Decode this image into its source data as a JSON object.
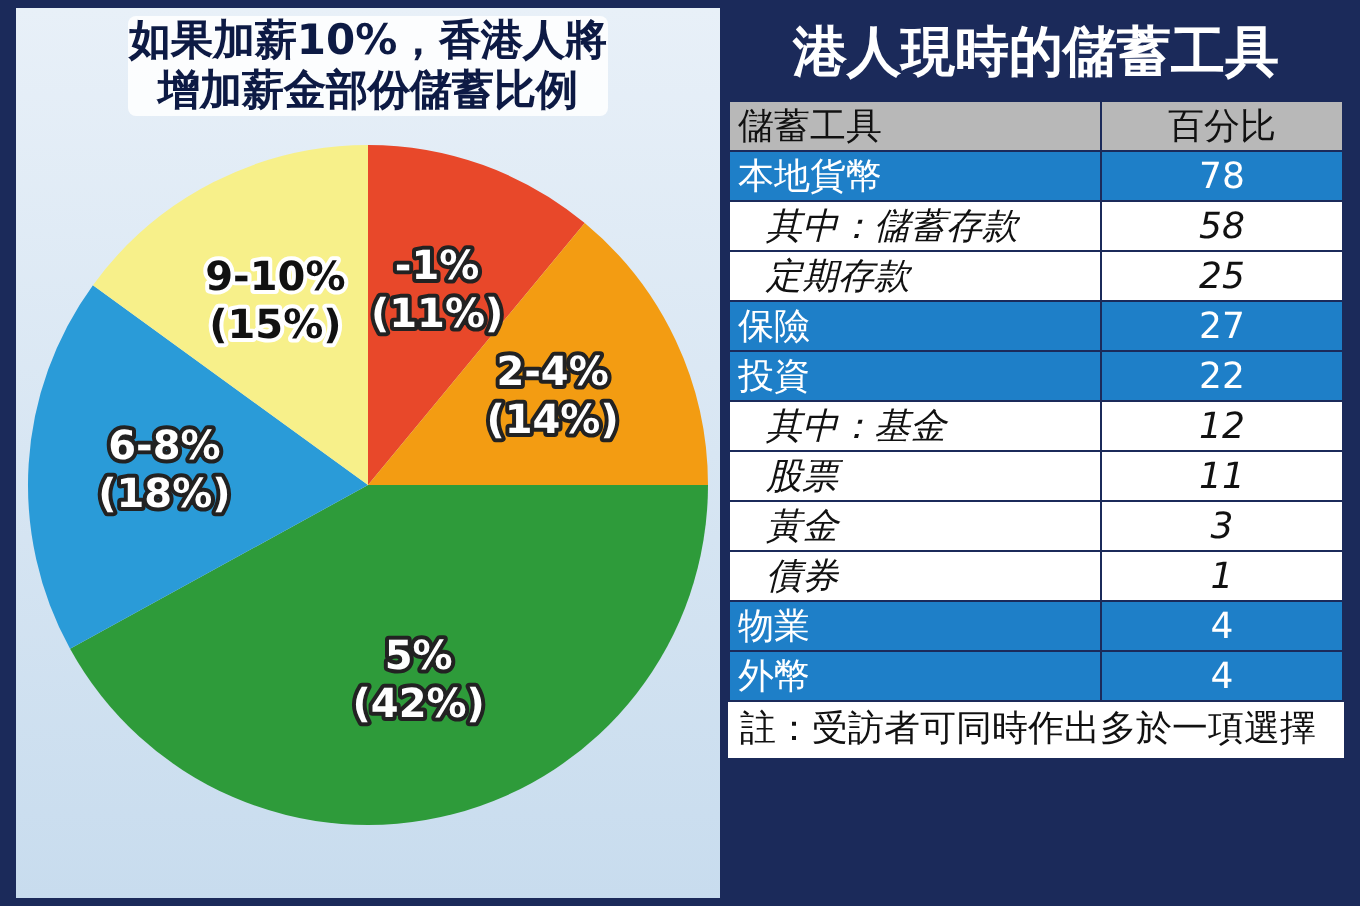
{
  "chart_data": [
    {
      "type": "pie",
      "title": "如果加薪10%，香港人將增加薪金部份儲蓄比例",
      "categories": [
        "-1%",
        "2-4%",
        "5%",
        "6-8%",
        "9-10%"
      ],
      "values": [
        11,
        14,
        42,
        18,
        15
      ],
      "value_labels": [
        "(11%)",
        "(14%)",
        "(42%)",
        "(18%)",
        "(15%)"
      ],
      "colors": [
        "#e8482a",
        "#f39c12",
        "#2e9b3a",
        "#2a9bd8",
        "#f7f08a"
      ],
      "legend": false
    },
    {
      "type": "other",
      "title": "港人現時的儲蓄工具",
      "xlabel": "儲蓄工具",
      "ylabel": "百分比",
      "categories": [
        "本地貨幣",
        "其中：儲蓄存款",
        "定期存款",
        "保險",
        "投資",
        "其中：基金",
        "股票",
        "黃金",
        "債券",
        "物業",
        "外幣"
      ],
      "values": [
        78,
        58,
        25,
        27,
        22,
        12,
        11,
        3,
        1,
        4,
        4
      ],
      "colors": [
        "#1e7fc8",
        "#ffffff",
        "#ffffff",
        "#1e7fc8",
        "#1e7fc8",
        "#ffffff",
        "#ffffff",
        "#ffffff",
        "#ffffff",
        "#1e7fc8",
        "#1e7fc8"
      ],
      "data_labels": true,
      "annotations": [
        "註：受訪者可同時作出多於一項選擇"
      ]
    }
  ]
}
